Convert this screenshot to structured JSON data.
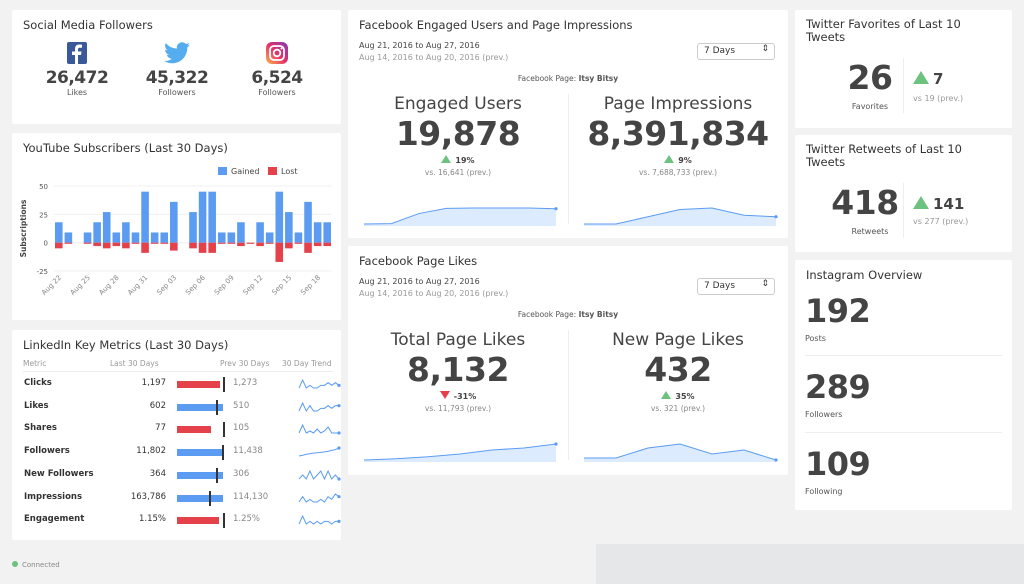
{
  "social": {
    "title": "Social Media Followers",
    "items": [
      {
        "icon": "facebook-icon",
        "value": "26,472",
        "label": "Likes",
        "color": "#3b5998"
      },
      {
        "icon": "twitter-icon",
        "value": "45,322",
        "label": "Followers",
        "color": "#55acee"
      },
      {
        "icon": "instagram-icon",
        "value": "6,524",
        "label": "Followers",
        "color": "#c13584"
      }
    ]
  },
  "youtube": {
    "title": "YouTube Subscribers (Last 30 Days)",
    "legend": [
      "Gained",
      "Lost"
    ],
    "colors": {
      "gained": "#5b9cf2",
      "lost": "#e4414b"
    }
  },
  "chart_data": {
    "type": "bar",
    "title": "YouTube Subscribers (Last 30 Days)",
    "ylabel": "Subscriptions",
    "ylim": [
      -25,
      50
    ],
    "yticks": [
      "50",
      "25",
      "0",
      "-25"
    ],
    "legend_position": "top-right",
    "categories": [
      "Aug 22",
      "Aug 23",
      "Aug 24",
      "Aug 25",
      "Aug 26",
      "Aug 27",
      "Aug 28",
      "Aug 29",
      "Aug 30",
      "Aug 31",
      "Sep 01",
      "Sep 02",
      "Sep 03",
      "Sep 04",
      "Sep 05",
      "Sep 06",
      "Sep 07",
      "Sep 08",
      "Sep 09",
      "Sep 10",
      "Sep 11",
      "Sep 12",
      "Sep 13",
      "Sep 14",
      "Sep 15",
      "Sep 16",
      "Sep 17",
      "Sep 18",
      "Sep 19"
    ],
    "tick_labels": [
      "Aug 22",
      "Aug 25",
      "Aug 28",
      "Aug 31",
      "Sep 03",
      "Sep 06",
      "Sep 09",
      "Sep 12",
      "Sep 15",
      "Sep 18"
    ],
    "series": [
      {
        "name": "Gained",
        "values": [
          18,
          9,
          0,
          9,
          18,
          27,
          9,
          18,
          9,
          45,
          9,
          9,
          36,
          0,
          27,
          45,
          45,
          9,
          9,
          18,
          0,
          18,
          9,
          45,
          27,
          9,
          36,
          18,
          18
        ]
      },
      {
        "name": "Lost",
        "values": [
          -5,
          -1,
          0,
          -1,
          -3,
          -5,
          -3,
          -5,
          -1,
          -9,
          -1,
          -1,
          -7,
          0,
          -5,
          -9,
          -9,
          -1,
          -1,
          -3,
          -1,
          -3,
          -1,
          -17,
          -5,
          -1,
          -9,
          -3,
          -3
        ]
      }
    ]
  },
  "linkedin": {
    "title": "LinkedIn Key Metrics (Last 30 Days)",
    "headers": [
      "Metric",
      "Last 30 Days",
      "Prev 30 Days",
      "30 Day Trend"
    ],
    "rows": [
      {
        "metric": "Clicks",
        "last": "1,197",
        "prev": "1,273",
        "ratio": 0.94,
        "trend": [
          3,
          6,
          3,
          4,
          3,
          3,
          4,
          4,
          5,
          4,
          5,
          4
        ]
      },
      {
        "metric": "Likes",
        "last": "602",
        "prev": "510",
        "ratio": 1.18,
        "trend": [
          3,
          6,
          3,
          5,
          3,
          3,
          4,
          4,
          5,
          4,
          5,
          5
        ]
      },
      {
        "metric": "Shares",
        "last": "77",
        "prev": "105",
        "ratio": 0.73,
        "trend": [
          3,
          7,
          3,
          4,
          3,
          5,
          3,
          4,
          6,
          3,
          3,
          3
        ]
      },
      {
        "metric": "Followers",
        "last": "11,802",
        "prev": "11,438",
        "ratio": 1.03,
        "trend": [
          2,
          2.5,
          3,
          3.5,
          3.8,
          4,
          4.3,
          4.6,
          5,
          5.5,
          6,
          7
        ]
      },
      {
        "metric": "New Followers",
        "last": "364",
        "prev": "306",
        "ratio": 1.19,
        "trend": [
          4,
          5,
          4,
          6,
          4,
          5,
          6,
          4,
          6,
          4,
          5,
          4
        ]
      },
      {
        "metric": "Impressions",
        "last": "163,786",
        "prev": "114,130",
        "ratio": 1.44,
        "trend": [
          3,
          5,
          3,
          4,
          3,
          3,
          4,
          3,
          5,
          4,
          6,
          5
        ]
      },
      {
        "metric": "Engagement",
        "last": "1.15%",
        "prev": "1.25%",
        "ratio": 0.92,
        "trend": [
          3,
          6,
          3,
          4,
          3,
          4,
          3,
          4,
          4,
          3,
          4,
          4
        ]
      }
    ]
  },
  "fb1": {
    "title": "Facebook Engaged Users and Page Impressions",
    "range": "Aug 21, 2016 to Aug 27, 2016",
    "prev_range": "Aug 14, 2016 to Aug 20, 2016 (prev.)",
    "select": "7 Days",
    "page_label": "Facebook Page:",
    "page_name": "Itsy Bitsy",
    "metrics": [
      {
        "title": "Engaged Users",
        "value": "19,878",
        "change": "19%",
        "direction": "up",
        "prev": "vs. 16,641 (prev.)",
        "trend": [
          0,
          0.1,
          3,
          4.5,
          4.6,
          4.6,
          4.6,
          4.4
        ]
      },
      {
        "title": "Page Impressions",
        "value": "8,391,834",
        "change": "9%",
        "direction": "up",
        "prev": "vs. 7,688,733 (prev.)",
        "trend": [
          0,
          0,
          2.5,
          5,
          5.5,
          3,
          2.5
        ]
      }
    ]
  },
  "fb2": {
    "title": "Facebook Page Likes",
    "range": "Aug 21, 2016 to Aug 27, 2016",
    "prev_range": "Aug 14, 2016 to Aug 20, 2016 (prev.)",
    "select": "7 Days",
    "page_label": "Facebook Page:",
    "page_name": "Itsy Bitsy",
    "metrics": [
      {
        "title": "Total Page Likes",
        "value": "8,132",
        "change": "-31%",
        "direction": "down",
        "prev": "vs. 11,793 (prev.)",
        "trend": [
          0,
          0.3,
          0.8,
          1.5,
          2.5,
          3,
          4
        ]
      },
      {
        "title": "New Page Likes",
        "value": "432",
        "change": "35%",
        "direction": "up",
        "prev": "vs. 321 (prev.)",
        "trend": [
          0.5,
          0.5,
          3,
          4,
          1.5,
          2.5,
          0
        ]
      }
    ]
  },
  "tw_fav": {
    "title": "Twitter Favorites of Last 10 Tweets",
    "value": "26",
    "label": "Favorites",
    "change": "7",
    "prev": "vs 19 (prev.)"
  },
  "tw_rt": {
    "title": "Twitter Retweets of Last 10 Tweets",
    "value": "418",
    "label": "Retweets",
    "change": "141",
    "prev": "vs 277 (prev.)"
  },
  "instagram": {
    "title": "Instagram Overview",
    "items": [
      {
        "value": "192",
        "label": "Posts"
      },
      {
        "value": "289",
        "label": "Followers"
      },
      {
        "value": "109",
        "label": "Following"
      }
    ]
  },
  "status": {
    "text": "Connected",
    "color": "#6cc27e"
  },
  "colors": {
    "accent": "#5b9cf2",
    "up": "#6cc27e",
    "down": "#e4414b"
  }
}
